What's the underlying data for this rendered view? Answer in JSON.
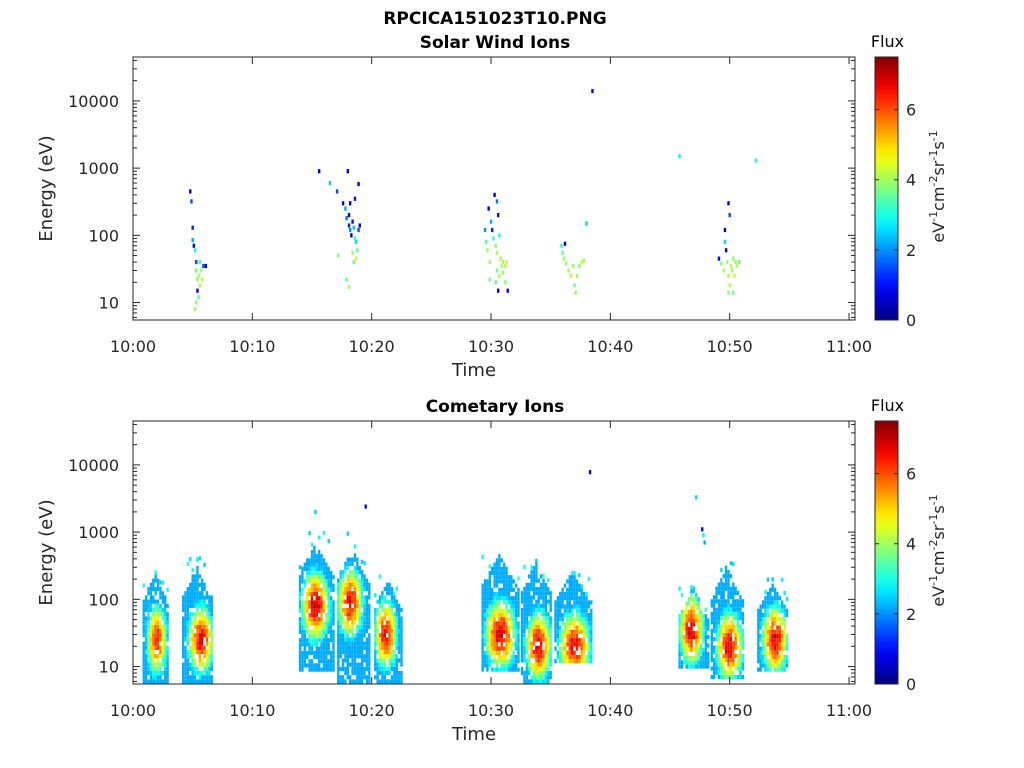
{
  "figure": {
    "title": "RPCICA151023T10.PNG"
  },
  "colorbar": {
    "label": "Flux",
    "min": 0,
    "max": 7.5,
    "ticks": [
      "0",
      "2",
      "4",
      "6"
    ],
    "tick_values": [
      0,
      2,
      4,
      6
    ],
    "unit_main": "eV",
    "unit_parts": [
      {
        "t": "eV",
        "sup": ""
      },
      {
        "t": "-1",
        "sup": "1"
      },
      {
        "t": "cm",
        "sup": ""
      },
      {
        "t": "-2",
        "sup": "1"
      },
      {
        "t": "sr",
        "sup": ""
      },
      {
        "t": "-1",
        "sup": "1"
      },
      {
        "t": "s",
        "sup": ""
      },
      {
        "t": "-1",
        "sup": "1"
      }
    ],
    "colormap": "jet"
  },
  "chart_data": [
    {
      "type": "heatmap",
      "title": "Solar Wind Ions",
      "xlabel": "Time",
      "ylabel": "Energy (eV)",
      "xticks": [
        "10:00",
        "10:10",
        "10:20",
        "10:30",
        "10:40",
        "10:50",
        "11:00"
      ],
      "xtick_minutes": [
        0,
        10,
        20,
        30,
        40,
        50,
        60
      ],
      "xlim_minutes": [
        0,
        60.5
      ],
      "yscale": "log",
      "ylim": [
        5.5,
        45000
      ],
      "yticks": [
        "10",
        "100",
        "1000",
        "10000"
      ],
      "ytick_values": [
        10,
        100,
        1000,
        10000
      ],
      "points": [
        [
          4.8,
          450,
          0.5
        ],
        [
          4.9,
          320,
          1.5
        ],
        [
          5.0,
          130,
          1.2
        ],
        [
          5.0,
          85,
          2.2
        ],
        [
          5.1,
          70,
          1.0
        ],
        [
          5.2,
          60,
          3.0
        ],
        [
          5.3,
          40,
          1.5
        ],
        [
          5.3,
          30,
          3.5
        ],
        [
          5.4,
          22,
          3.8
        ],
        [
          5.4,
          15,
          0.8
        ],
        [
          5.5,
          25,
          4.0
        ],
        [
          5.5,
          12,
          3.5
        ],
        [
          5.6,
          40,
          3.2
        ],
        [
          5.7,
          30,
          4.0
        ],
        [
          5.8,
          22,
          4.2
        ],
        [
          5.9,
          35,
          1.5
        ],
        [
          6.1,
          35,
          0.9
        ],
        [
          5.2,
          8,
          4.0
        ],
        [
          5.3,
          10,
          3.8
        ],
        [
          5.6,
          18,
          4.1
        ],
        [
          15.6,
          900,
          0.6
        ],
        [
          16.5,
          600,
          2.5
        ],
        [
          17.1,
          450,
          1.5
        ],
        [
          17.6,
          300,
          0.8
        ],
        [
          17.8,
          250,
          2.2
        ],
        [
          17.9,
          180,
          1.8
        ],
        [
          18.0,
          900,
          0.5
        ],
        [
          18.1,
          200,
          0.8
        ],
        [
          18.1,
          140,
          1.2
        ],
        [
          18.2,
          120,
          2.0
        ],
        [
          18.3,
          100,
          0.6
        ],
        [
          18.4,
          160,
          1.0
        ],
        [
          18.5,
          130,
          2.4
        ],
        [
          18.6,
          90,
          3.2
        ],
        [
          18.7,
          80,
          2.6
        ],
        [
          18.8,
          60,
          3.5
        ],
        [
          18.9,
          120,
          1.5
        ],
        [
          19.0,
          140,
          0.7
        ],
        [
          18.4,
          55,
          4.0
        ],
        [
          18.5,
          40,
          3.6
        ],
        [
          18.7,
          45,
          4.2
        ],
        [
          18.6,
          350,
          1.0
        ],
        [
          18.2,
          300,
          0.5
        ],
        [
          17.2,
          50,
          3.8
        ],
        [
          17.9,
          22,
          3.5
        ],
        [
          18.1,
          17,
          4.0
        ],
        [
          18.9,
          580,
          0.6
        ],
        [
          29.5,
          120,
          2.0
        ],
        [
          29.6,
          80,
          3.5
        ],
        [
          29.7,
          60,
          4.0
        ],
        [
          29.8,
          250,
          0.6
        ],
        [
          29.9,
          40,
          4.0
        ],
        [
          30.0,
          160,
          2.2
        ],
        [
          30.1,
          120,
          1.2
        ],
        [
          30.2,
          90,
          3.2
        ],
        [
          30.3,
          400,
          0.5
        ],
        [
          30.4,
          70,
          3.8
        ],
        [
          30.5,
          55,
          4.0
        ],
        [
          30.5,
          320,
          1.8
        ],
        [
          30.6,
          200,
          1.0
        ],
        [
          30.7,
          100,
          3.0
        ],
        [
          30.8,
          45,
          4.0
        ],
        [
          30.9,
          35,
          4.2
        ],
        [
          30.5,
          30,
          3.6
        ],
        [
          30.7,
          25,
          4.1
        ],
        [
          30.4,
          20,
          3.5
        ],
        [
          30.6,
          15,
          0.8
        ],
        [
          31.0,
          40,
          4.0
        ],
        [
          31.2,
          35,
          4.0
        ],
        [
          31.2,
          20,
          3.8
        ],
        [
          31.4,
          15,
          0.8
        ],
        [
          29.9,
          22,
          3.7
        ],
        [
          31.3,
          40,
          4.2
        ],
        [
          31.0,
          28,
          3.9
        ],
        [
          35.9,
          70,
          3.0
        ],
        [
          36.0,
          55,
          3.6
        ],
        [
          36.1,
          45,
          4.0
        ],
        [
          36.2,
          75,
          0.6
        ],
        [
          36.3,
          38,
          4.0
        ],
        [
          36.5,
          30,
          4.0
        ],
        [
          36.7,
          25,
          4.2
        ],
        [
          36.9,
          35,
          3.8
        ],
        [
          37.0,
          18,
          3.6
        ],
        [
          37.2,
          25,
          4.0
        ],
        [
          37.4,
          35,
          3.8
        ],
        [
          37.6,
          40,
          4.2
        ],
        [
          37.8,
          42,
          4.1
        ],
        [
          37.1,
          14,
          4.0
        ],
        [
          38.0,
          150,
          2.5
        ],
        [
          38.5,
          14000,
          1.0
        ],
        [
          45.8,
          1500,
          2.8
        ],
        [
          52.2,
          1300,
          3.0
        ],
        [
          49.1,
          45,
          1.0
        ],
        [
          49.3,
          38,
          3.8
        ],
        [
          49.5,
          30,
          4.0
        ],
        [
          49.6,
          120,
          0.6
        ],
        [
          49.6,
          80,
          2.5
        ],
        [
          49.7,
          60,
          0.9
        ],
        [
          49.8,
          40,
          4.0
        ],
        [
          49.9,
          300,
          0.6
        ],
        [
          49.9,
          25,
          4.0
        ],
        [
          50.0,
          200,
          1.5
        ],
        [
          50.0,
          18,
          4.0
        ],
        [
          50.1,
          35,
          4.2
        ],
        [
          50.2,
          30,
          4.0
        ],
        [
          50.3,
          45,
          3.8
        ],
        [
          50.4,
          25,
          4.2
        ],
        [
          50.5,
          40,
          4.0
        ],
        [
          50.6,
          35,
          4.1
        ],
        [
          49.9,
          14,
          3.8
        ],
        [
          50.3,
          14,
          3.6
        ],
        [
          50.8,
          40,
          3.5
        ]
      ]
    },
    {
      "type": "heatmap",
      "title": "Cometary Ions",
      "xlabel": "Time",
      "ylabel": "Energy (eV)",
      "xticks": [
        "10:00",
        "10:10",
        "10:20",
        "10:30",
        "10:40",
        "10:50",
        "11:00"
      ],
      "xtick_minutes": [
        0,
        10,
        20,
        30,
        40,
        50,
        60
      ],
      "xlim_minutes": [
        0,
        60.5
      ],
      "yscale": "log",
      "ylim": [
        5.5,
        45000
      ],
      "yticks": [
        "10",
        "100",
        "1000",
        "10000"
      ],
      "ytick_values": [
        10,
        100,
        1000,
        10000
      ],
      "clusters": [
        {
          "t0": 0.9,
          "t1": 3.0,
          "elo": 6,
          "ehi": 250,
          "peak_t": 2.0,
          "peak_e": 25,
          "vmax": 6.3,
          "tip": 300
        },
        {
          "t0": 4.2,
          "t1": 6.8,
          "elo": 6,
          "ehi": 300,
          "peak_t": 5.7,
          "peak_e": 25,
          "vmax": 6.6,
          "tip": 480
        },
        {
          "t0": 14.0,
          "t1": 16.8,
          "elo": 9,
          "ehi": 700,
          "peak_t": 15.3,
          "peak_e": 80,
          "vmax": 6.9,
          "tip": 1000
        },
        {
          "t0": 17.2,
          "t1": 19.8,
          "elo": 6,
          "ehi": 550,
          "peak_t": 18.2,
          "peak_e": 90,
          "vmax": 6.6,
          "tip": 620
        },
        {
          "t0": 20.3,
          "t1": 22.6,
          "elo": 6,
          "ehi": 200,
          "peak_t": 21.2,
          "peak_e": 30,
          "vmax": 6.6,
          "tip": 220
        },
        {
          "t0": 29.3,
          "t1": 32.4,
          "elo": 9,
          "ehi": 450,
          "peak_t": 30.8,
          "peak_e": 30,
          "vmax": 6.8,
          "tip": 450
        },
        {
          "t0": 32.6,
          "t1": 35.2,
          "elo": 6,
          "ehi": 350,
          "peak_t": 34.0,
          "peak_e": 20,
          "vmax": 6.7,
          "tip": 420
        },
        {
          "t0": 35.4,
          "t1": 38.6,
          "elo": 12,
          "ehi": 250,
          "peak_t": 37.0,
          "peak_e": 20,
          "vmax": 6.6,
          "tip": 250
        },
        {
          "t0": 45.8,
          "t1": 48.3,
          "elo": 10,
          "ehi": 150,
          "peak_t": 46.8,
          "peak_e": 35,
          "vmax": 6.8,
          "tip": 160
        },
        {
          "t0": 48.5,
          "t1": 51.2,
          "elo": 7,
          "ehi": 300,
          "peak_t": 50.0,
          "peak_e": 20,
          "vmax": 6.7,
          "tip": 350
        },
        {
          "t0": 52.4,
          "t1": 55.0,
          "elo": 9,
          "ehi": 180,
          "peak_t": 53.8,
          "peak_e": 25,
          "vmax": 6.7,
          "tip": 200
        }
      ],
      "points": [
        [
          15.3,
          2000,
          2.5
        ],
        [
          19.5,
          2400,
          1.0
        ],
        [
          38.3,
          7800,
          1.0
        ],
        [
          47.2,
          3300,
          2.5
        ],
        [
          47.7,
          1100,
          1.0
        ],
        [
          47.8,
          900,
          2.8
        ],
        [
          47.9,
          700,
          2.2
        ],
        [
          18.0,
          950,
          2.5
        ]
      ]
    }
  ]
}
